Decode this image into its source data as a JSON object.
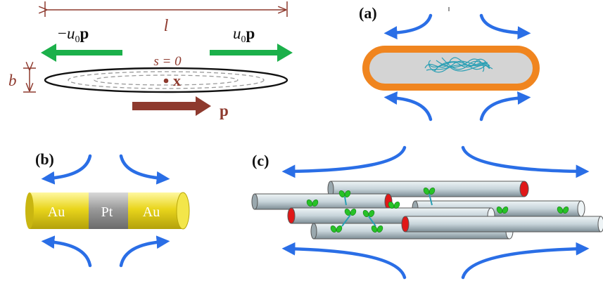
{
  "colors": {
    "blue_arrow": "#2a6ee6",
    "green_arrow": "#1bb04a",
    "maroon": "#8e3a2e",
    "orange": "#f0851f",
    "gold": "#e9d51c",
    "platinum": "#9a9a9a",
    "rod": "#c9d6dc",
    "red_cap": "#e01818",
    "coil": "#2a9fb4",
    "leaf": "#27c227"
  },
  "schematic": {
    "length_label": "l",
    "diameter_label": "b",
    "left_force": {
      "sign": "−",
      "symbol": "u",
      "subscript": "0",
      "vector": "p"
    },
    "right_force": {
      "symbol": "u",
      "subscript": "0",
      "vector": "p"
    },
    "arc_label": "s = 0",
    "center_label": "x",
    "direction_label": "p"
  },
  "panels": {
    "a": {
      "label": "(a)"
    },
    "b": {
      "label": "(b)",
      "segments": [
        "Au",
        "Pt",
        "Au"
      ]
    },
    "c": {
      "label": "(c)"
    }
  }
}
